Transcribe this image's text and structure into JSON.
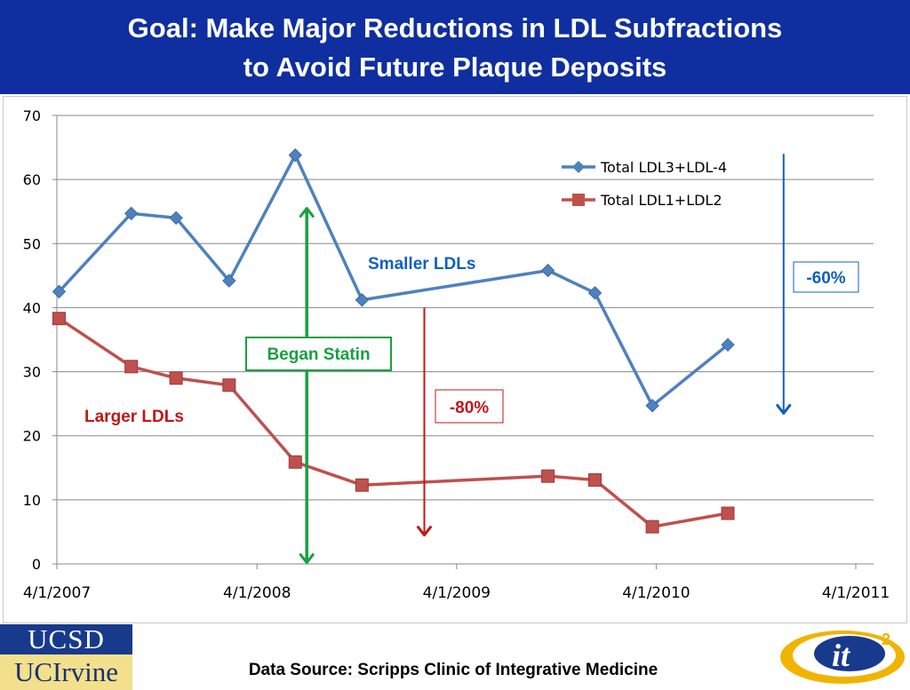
{
  "header": {
    "title_line1": "Goal: Make Major Reductions in LDL Subfractions",
    "title_line2": "to Avoid Future Plaque Deposits"
  },
  "chart_data": {
    "type": "line",
    "y_ticks": [
      "70",
      "60",
      "50",
      "40",
      "30",
      "20",
      "10",
      "0"
    ],
    "y_tick_values": [
      70,
      60,
      50,
      40,
      30,
      20,
      10,
      0
    ],
    "ylim": [
      0,
      70
    ],
    "x_ticks": [
      "4/1/2007",
      "4/1/2008",
      "4/1/2009",
      "4/1/2010",
      "4/1/2011"
    ],
    "x_tick_dates": [
      "2007-04-01",
      "2008-04-01",
      "2009-04-01",
      "2010-04-01",
      "2011-04-01"
    ],
    "xlim": [
      "2007-04-01",
      "2011-04-01"
    ],
    "grid": "horizontal",
    "legend_position": "top-right",
    "series": [
      {
        "name": "Total LDL3+LDL-4",
        "color": "#4f81bd",
        "marker": "diamond",
        "points": [
          [
            "2007-04-05",
            42.5
          ],
          [
            "2007-08-15",
            54.7
          ],
          [
            "2007-11-05",
            54.0
          ],
          [
            "2008-02-10",
            44.2
          ],
          [
            "2008-06-10",
            63.8
          ],
          [
            "2008-10-10",
            41.2
          ],
          [
            "2009-09-15",
            45.8
          ],
          [
            "2009-12-10",
            42.3
          ],
          [
            "2010-03-25",
            24.7
          ],
          [
            "2010-08-10",
            34.2
          ]
        ]
      },
      {
        "name": "Total LDL1+LDL2",
        "color": "#c0504d",
        "marker": "square",
        "points": [
          [
            "2007-04-05",
            38.3
          ],
          [
            "2007-08-15",
            30.8
          ],
          [
            "2007-11-05",
            29.0
          ],
          [
            "2008-02-10",
            27.9
          ],
          [
            "2008-06-10",
            15.9
          ],
          [
            "2008-10-10",
            12.3
          ],
          [
            "2009-09-15",
            13.7
          ],
          [
            "2009-12-10",
            13.1
          ],
          [
            "2010-03-25",
            5.8
          ],
          [
            "2010-08-10",
            7.9
          ]
        ]
      }
    ],
    "annotations": {
      "smaller": {
        "text": "Smaller LDLs",
        "color": "#1060c0"
      },
      "larger": {
        "text": "Larger LDLs",
        "color": "#c01818"
      },
      "statin": {
        "text": "Began Statin",
        "color": "#18a040",
        "date": "2008-07-01"
      },
      "pct80": {
        "text": "-80%",
        "color": "#c01818",
        "date": "2009-02-01",
        "from": 40,
        "to": 4.5
      },
      "pct60": {
        "text": "-60%",
        "color": "#1060c0",
        "date": "2010-11-20",
        "from": 64,
        "to": 23.5
      }
    }
  },
  "logos": {
    "ucsd": "UCSD",
    "ucirvine": "UCIrvine",
    "it2_main": "it",
    "it2_sup": "2"
  },
  "footer": {
    "source": "Data Source: Scripps Clinic of Integrative Medicine"
  }
}
